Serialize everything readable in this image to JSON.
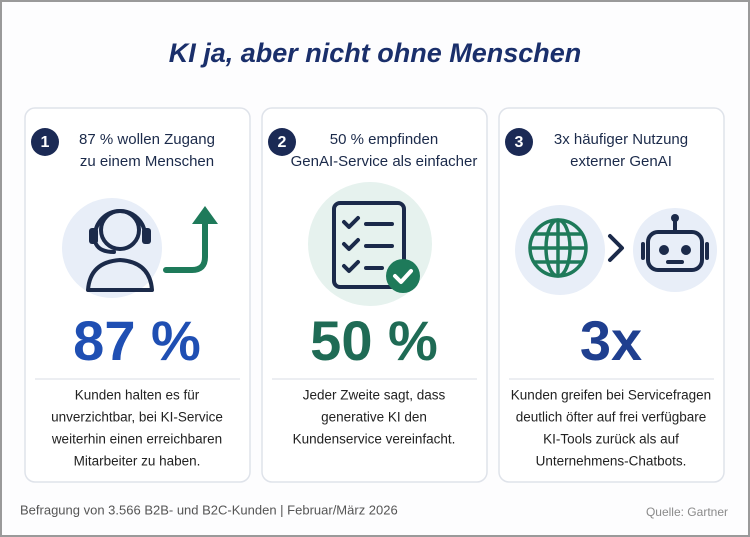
{
  "title": "KI ja, aber nicht ohne Menschen",
  "cards": [
    {
      "number": "1",
      "heading_lines": [
        "87 % wollen Zugang",
        "zu einem Menschen"
      ],
      "stat": "87 %",
      "text_lines": [
        "Kunden halten es für",
        "unverzichtbar, bei KI-Service",
        "weiterhin einen erreichbaren",
        "Mitarbeiter zu haben."
      ]
    },
    {
      "number": "2",
      "heading_lines": [
        "50 % empfinden",
        "GenAI-Service als einfacher"
      ],
      "stat": "50 %",
      "text_lines": [
        "Jeder Zweite sagt, dass",
        "generative KI den",
        "Kundenservice vereinfacht."
      ]
    },
    {
      "number": "3",
      "heading_lines": [
        "3x häufiger Nutzung",
        "externer GenAI"
      ],
      "stat": "3x",
      "text_lines": [
        "Kunden greifen bei Servicefragen",
        "deutlich öfter auf frei verfügbare",
        "KI-Tools zurück als auf",
        "Unternehmens-Chatbots."
      ]
    }
  ],
  "footer": {
    "note": "Befragung von 3.566 B2B- und B2C-Kunden | Februar/März 2026",
    "source": "Quelle: Gartner"
  }
}
